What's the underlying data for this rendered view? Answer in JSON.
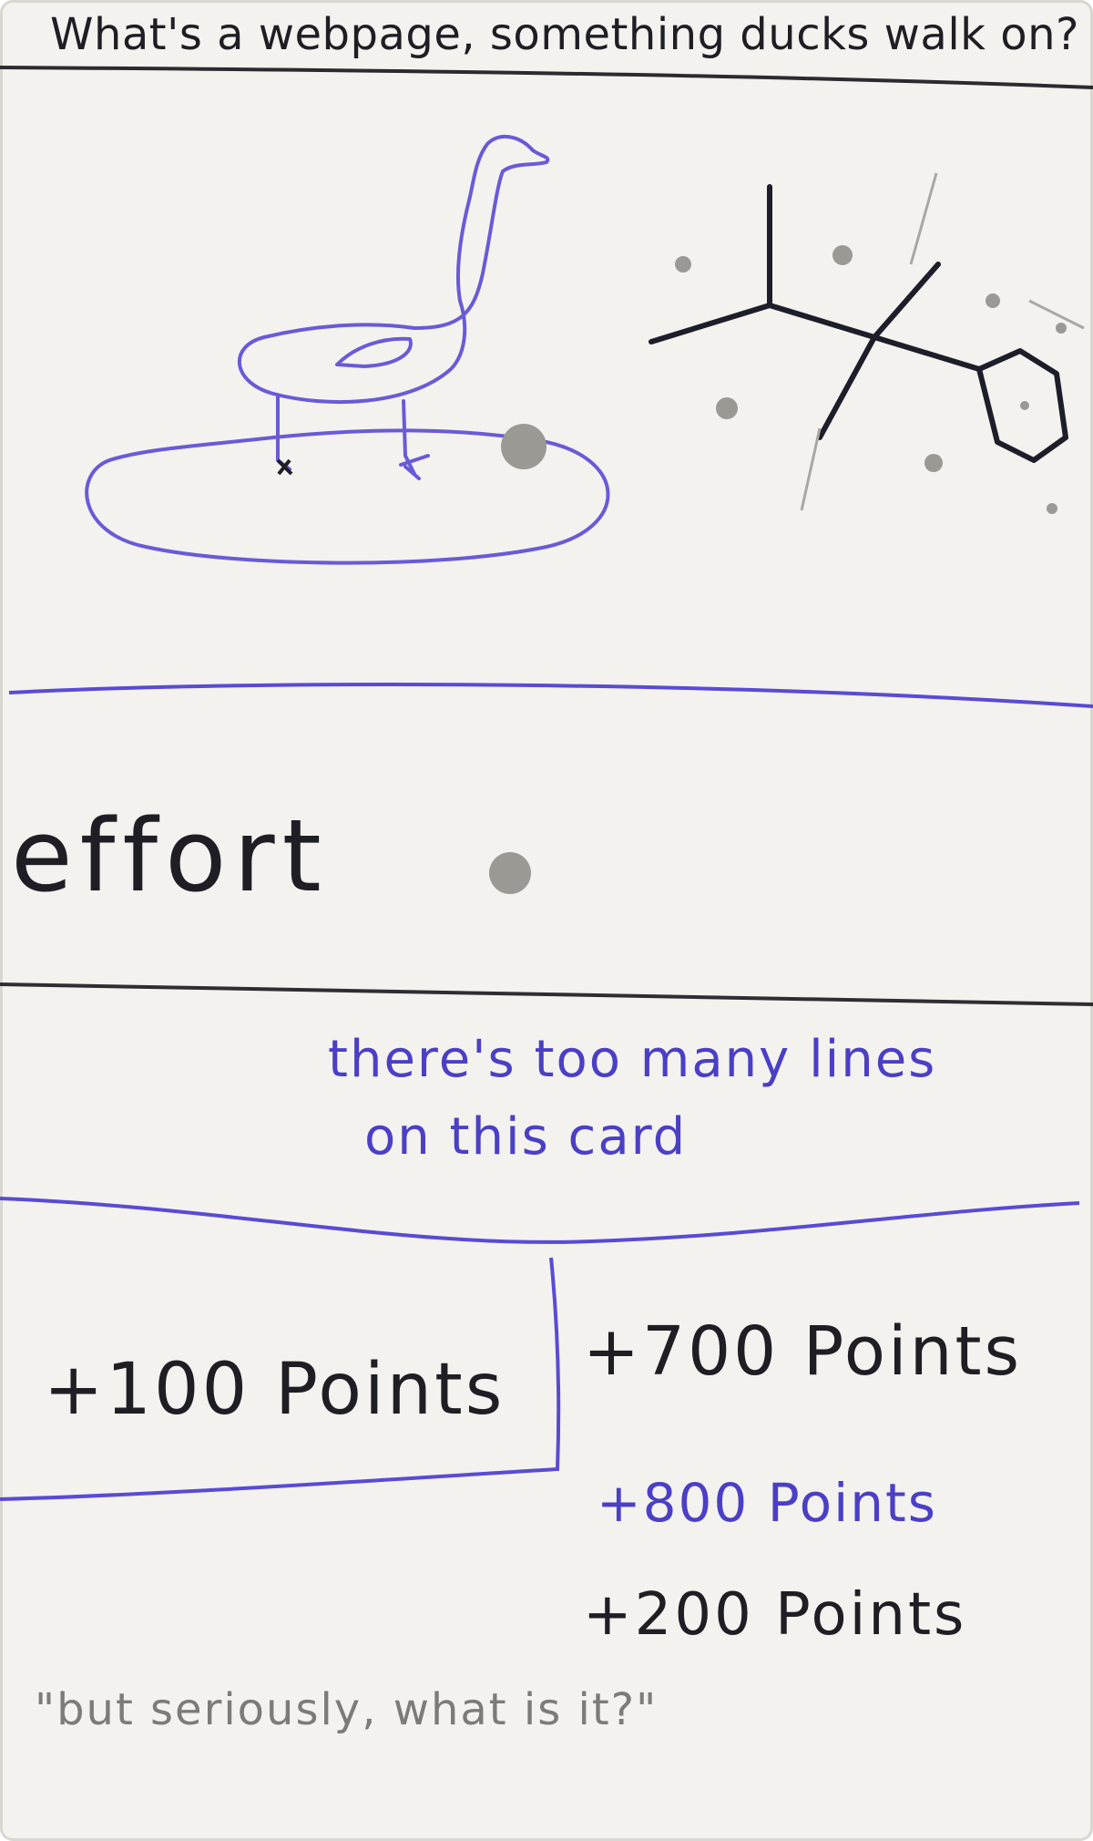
{
  "card": {
    "title": "What's a webpage, something ducks walk on?",
    "effort_label": "effort",
    "note_line_1": "there's too many lines",
    "note_line_2": "on this card",
    "points_left": "+100 Points",
    "points_right": [
      "+700 Points",
      "+800 Points",
      "+200 Points"
    ],
    "caption": "\"but seriously, what is it?\""
  },
  "colors": {
    "paper": "#f3f2ee",
    "blue_ink": "#4b3fc6",
    "dark_ink": "#1e1e24",
    "pencil": "#7d7b78",
    "rivet": "#9a9994"
  },
  "icons": [
    "duck-sketch",
    "molecule-sketch",
    "rivet-dot"
  ]
}
